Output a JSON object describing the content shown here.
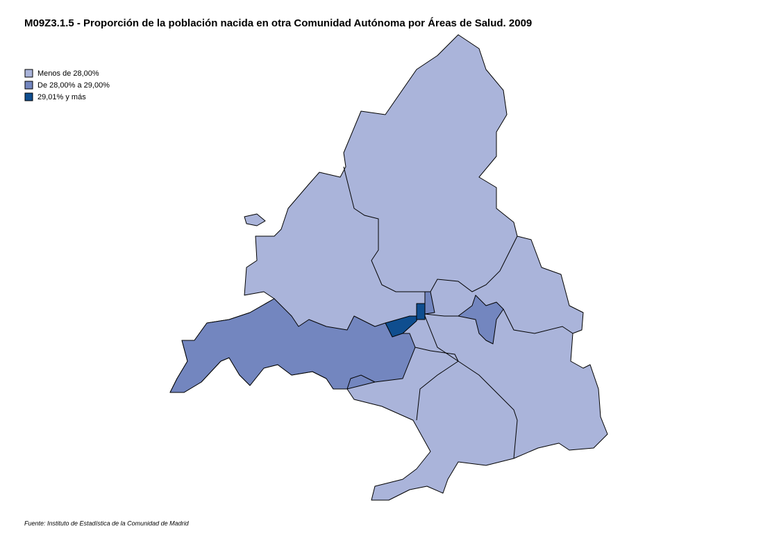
{
  "title": "M09Z3.1.5 - Proporción de la población nacida en otra Comunidad Autónoma por Áreas de Salud. 2009",
  "legend": [
    {
      "label": "Menos de 28,00%",
      "color": "#aab4da"
    },
    {
      "label": "De 28,00% a 29,00%",
      "color": "#7386bf"
    },
    {
      "label": "29,01% y más",
      "color": "#0f4e8f"
    }
  ],
  "source": "Fuente: Instituto de Estadística de la Comunidad de Madrid"
}
